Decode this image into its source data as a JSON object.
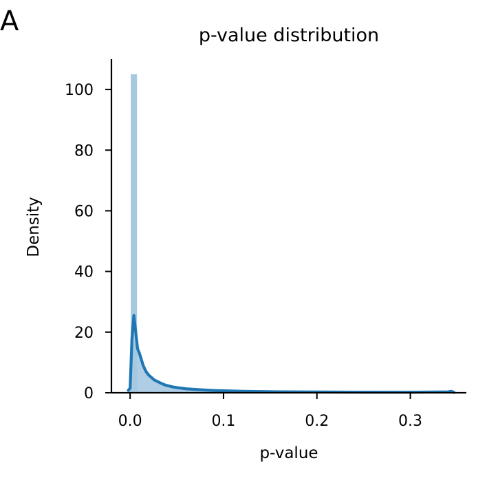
{
  "panel_label": "A",
  "chart_data": {
    "type": "area",
    "title": "p-value distribution",
    "xlabel": "p-value",
    "ylabel": "Density",
    "xlim": [
      -0.02,
      0.36
    ],
    "ylim": [
      0,
      110
    ],
    "xticks": [
      {
        "value": 0.0,
        "label": "0.0"
      },
      {
        "value": 0.1,
        "label": "0.1"
      },
      {
        "value": 0.2,
        "label": "0.2"
      },
      {
        "value": 0.3,
        "label": "0.3"
      }
    ],
    "yticks": [
      {
        "value": 0,
        "label": "0"
      },
      {
        "value": 20,
        "label": "20"
      },
      {
        "value": 40,
        "label": "40"
      },
      {
        "value": 60,
        "label": "60"
      },
      {
        "value": 80,
        "label": "80"
      },
      {
        "value": 100,
        "label": "100"
      }
    ],
    "grid": false,
    "colors": {
      "histogram": "#a6c9e2",
      "kde": "#1f77b4"
    },
    "histogram": {
      "bin_edges": [
        0.0007,
        0.0074
      ],
      "densities": [
        105
      ]
    },
    "kde": {
      "x": [
        -0.002,
        0.0,
        0.002,
        0.004,
        0.006,
        0.008,
        0.01,
        0.012,
        0.014,
        0.017,
        0.02,
        0.023,
        0.026,
        0.03,
        0.034,
        0.038,
        0.042,
        0.046,
        0.05,
        0.055,
        0.06,
        0.07,
        0.08,
        0.09,
        0.1,
        0.12,
        0.14,
        0.16,
        0.2,
        0.25,
        0.3,
        0.34,
        0.344,
        0.347
      ],
      "y": [
        0.8,
        1.5,
        18,
        25.5,
        20,
        14.5,
        13,
        11,
        9,
        7,
        5.8,
        5,
        4.2,
        3.6,
        3,
        2.5,
        2.2,
        1.9,
        1.7,
        1.5,
        1.3,
        1.1,
        0.9,
        0.75,
        0.65,
        0.5,
        0.4,
        0.33,
        0.25,
        0.2,
        0.18,
        0.3,
        0.5,
        0.1
      ]
    }
  }
}
